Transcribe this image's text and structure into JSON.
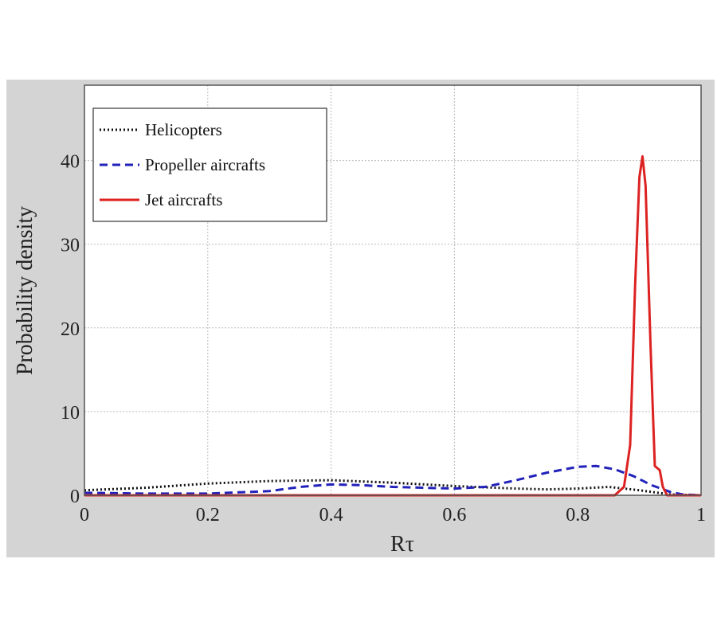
{
  "chart_data": {
    "type": "line",
    "title": "",
    "xlabel": "Rτ",
    "ylabel": "Probability density",
    "xlim": [
      0,
      1
    ],
    "ylim": [
      0,
      49
    ],
    "xticks": [
      "0",
      "0.2",
      "0.4",
      "0.6",
      "0.8",
      "1"
    ],
    "xtick_values": [
      0,
      0.2,
      0.4,
      0.6,
      0.8,
      1
    ],
    "yticks": [
      "0",
      "10",
      "20",
      "30",
      "40"
    ],
    "ytick_values": [
      0,
      10,
      20,
      30,
      40
    ],
    "grid": true,
    "legend_position": "top-left",
    "series": [
      {
        "name": "Helicopters",
        "color": "#111111",
        "style": "dotted",
        "x": [
          0,
          0.1,
          0.2,
          0.3,
          0.4,
          0.5,
          0.6,
          0.7,
          0.75,
          0.8,
          0.85,
          0.9,
          0.95,
          1
        ],
        "y": [
          0.6,
          0.9,
          1.4,
          1.7,
          1.8,
          1.5,
          1.1,
          0.8,
          0.7,
          0.8,
          1.0,
          0.6,
          0.1,
          0
        ]
      },
      {
        "name": "Propeller aircrafts",
        "color": "#2222bb",
        "style": "dashed",
        "x": [
          0,
          0.1,
          0.2,
          0.3,
          0.35,
          0.4,
          0.45,
          0.5,
          0.55,
          0.6,
          0.65,
          0.7,
          0.75,
          0.8,
          0.83,
          0.86,
          0.89,
          0.92,
          0.95,
          0.97,
          1
        ],
        "y": [
          0.3,
          0.2,
          0.2,
          0.5,
          1.0,
          1.3,
          1.2,
          1.0,
          0.9,
          0.8,
          1.0,
          1.8,
          2.7,
          3.4,
          3.5,
          3.1,
          2.3,
          1.2,
          0.4,
          0.1,
          0
        ]
      },
      {
        "name": "Jet aircrafts",
        "color": "#dd2222",
        "style": "solid",
        "x": [
          0,
          0.86,
          0.875,
          0.885,
          0.893,
          0.9,
          0.905,
          0.91,
          0.918,
          0.925,
          0.933,
          0.938,
          0.945,
          1
        ],
        "y": [
          0,
          0,
          1.0,
          6.0,
          25.0,
          38.0,
          40.5,
          37.0,
          18.0,
          3.5,
          3.0,
          1.0,
          0,
          0
        ]
      }
    ]
  }
}
